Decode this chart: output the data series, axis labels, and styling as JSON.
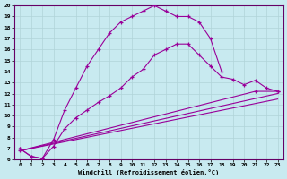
{
  "xlabel": "Windchill (Refroidissement éolien,°C)",
  "ylabel": "",
  "xlim": [
    -0.5,
    23.5
  ],
  "ylim": [
    6,
    20
  ],
  "xticks": [
    0,
    1,
    2,
    3,
    4,
    5,
    6,
    7,
    8,
    9,
    10,
    11,
    12,
    13,
    14,
    15,
    16,
    17,
    18,
    19,
    20,
    21,
    22,
    23
  ],
  "yticks": [
    6,
    7,
    8,
    9,
    10,
    11,
    12,
    13,
    14,
    15,
    16,
    17,
    18,
    19,
    20
  ],
  "bg_color": "#c8eaf0",
  "line_color": "#990099",
  "grid_color": "#b0d4d8",
  "lines": [
    {
      "x": [
        0,
        1,
        2,
        3,
        4,
        5,
        6,
        7,
        8,
        9,
        10,
        11,
        12,
        13,
        14,
        15,
        16,
        17,
        18
      ],
      "y": [
        7.0,
        6.3,
        6.1,
        7.8,
        10.5,
        12.5,
        14.5,
        16.0,
        17.5,
        18.5,
        19.0,
        19.5,
        20.0,
        19.5,
        19.0,
        19.0,
        18.5,
        17.0,
        14.0
      ],
      "marker": true
    },
    {
      "x": [
        0,
        1,
        2,
        3,
        4,
        5,
        6,
        7,
        8,
        9,
        10,
        11,
        12,
        13,
        14,
        15,
        16,
        17,
        18,
        19,
        20,
        21,
        22,
        23
      ],
      "y": [
        7.0,
        6.3,
        6.1,
        7.2,
        8.8,
        9.8,
        10.5,
        11.2,
        11.8,
        12.5,
        13.5,
        14.2,
        15.5,
        16.0,
        16.5,
        16.5,
        15.5,
        14.5,
        13.5,
        13.3,
        12.8,
        13.2,
        12.5,
        12.2
      ],
      "marker": true
    },
    {
      "x": [
        0,
        23
      ],
      "y": [
        6.8,
        11.5
      ],
      "marker": false
    },
    {
      "x": [
        0,
        23
      ],
      "y": [
        6.8,
        12.0
      ],
      "marker": false
    },
    {
      "x": [
        0,
        21,
        23
      ],
      "y": [
        6.8,
        12.2,
        12.2
      ],
      "marker": true
    }
  ]
}
